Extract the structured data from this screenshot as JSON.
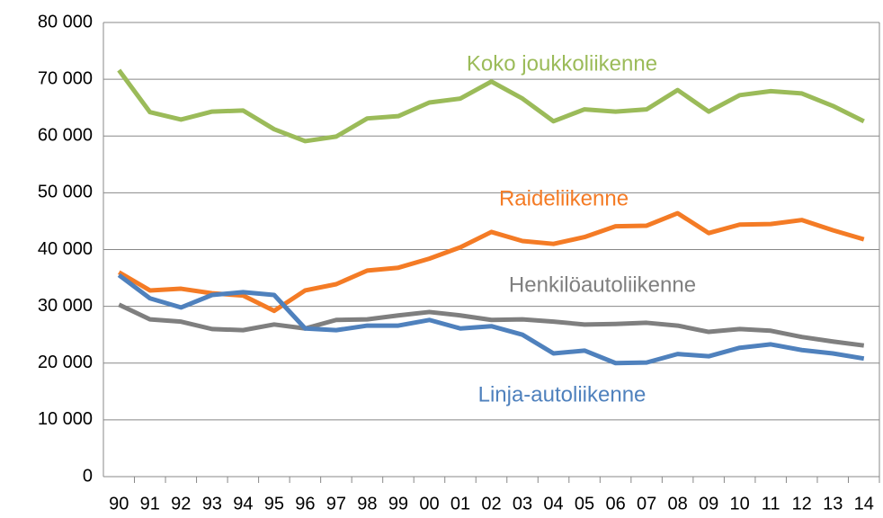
{
  "chart_data": {
    "type": "line",
    "categories": [
      "90",
      "91",
      "92",
      "93",
      "94",
      "95",
      "96",
      "97",
      "98",
      "99",
      "00",
      "01",
      "02",
      "03",
      "04",
      "05",
      "06",
      "07",
      "08",
      "09",
      "10",
      "11",
      "12",
      "13",
      "14"
    ],
    "series": [
      {
        "name": "Koko joukkoliikenne",
        "color": "#9bbb59",
        "values": [
          71600,
          64200,
          62900,
          64300,
          64500,
          61200,
          59100,
          59900,
          63100,
          63500,
          65900,
          66600,
          69600,
          66600,
          62600,
          64700,
          64300,
          64700,
          68100,
          64300,
          67200,
          67900,
          67500,
          65300,
          62600
        ]
      },
      {
        "name": "Raideliikenne",
        "color": "#f47b25",
        "values": [
          36000,
          32800,
          33100,
          32300,
          31900,
          29200,
          32800,
          33900,
          36300,
          36800,
          38400,
          40400,
          43100,
          41500,
          41000,
          42200,
          44100,
          44200,
          46400,
          42900,
          44400,
          44500,
          45200,
          43400,
          41800
        ]
      },
      {
        "name": "Henkilöautoliikenne",
        "color": "#7f7f7f",
        "values": [
          30300,
          27700,
          27300,
          26000,
          25800,
          26800,
          26100,
          27600,
          27700,
          28400,
          29000,
          28400,
          27600,
          27700,
          27300,
          26800,
          26900,
          27100,
          26600,
          25500,
          26000,
          25700,
          24600,
          23800,
          23100
        ]
      },
      {
        "name": "Linja-autoliikenne",
        "color": "#4f81bd",
        "values": [
          35500,
          31400,
          29800,
          32000,
          32500,
          32000,
          26100,
          25800,
          26600,
          26600,
          27600,
          26100,
          26500,
          25000,
          21700,
          22200,
          20000,
          20100,
          21600,
          21200,
          22700,
          23300,
          22300,
          21700,
          20800
        ]
      }
    ],
    "ylim": [
      0,
      80000
    ],
    "yticks": [
      0,
      {
        "value": 10000,
        "label": "10 000"
      },
      {
        "value": 20000,
        "label": "20 000"
      },
      {
        "value": 30000,
        "label": "30 000"
      },
      {
        "value": 40000,
        "label": "40 000"
      },
      {
        "value": 50000,
        "label": "50 000"
      },
      {
        "value": 60000,
        "label": "60 000"
      },
      {
        "value": 70000,
        "label": "70 000"
      },
      {
        "value": 80000,
        "label": "80 000"
      }
    ],
    "grid": true
  }
}
